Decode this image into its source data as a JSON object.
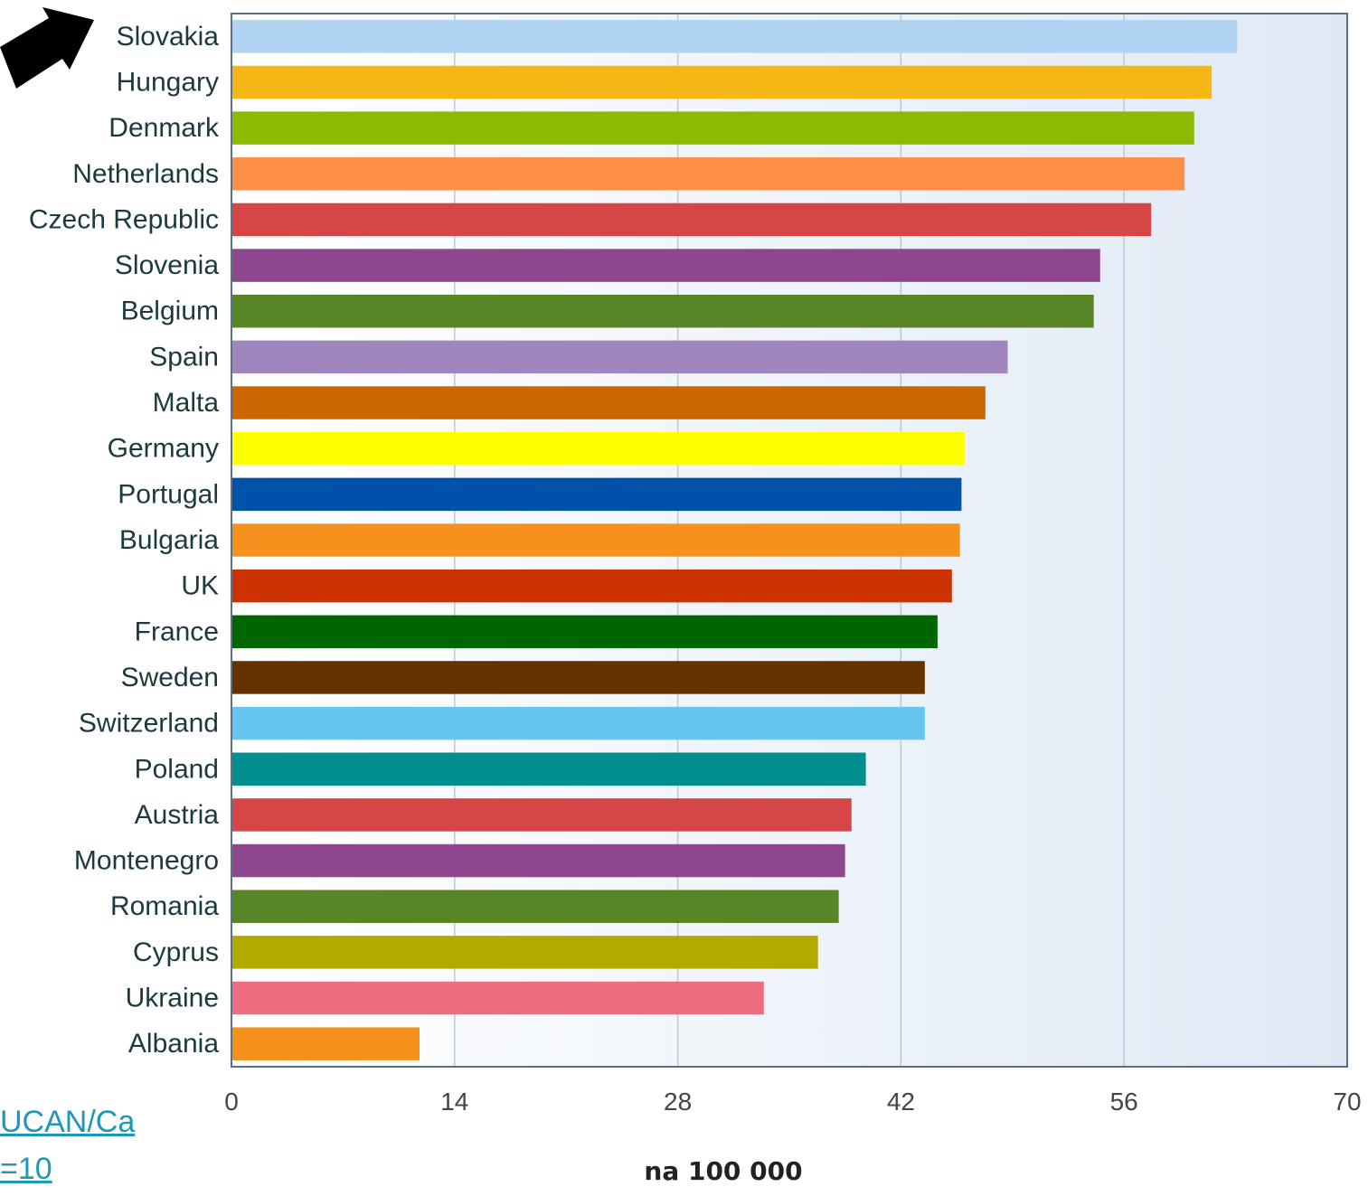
{
  "chart_data": {
    "type": "bar",
    "orientation": "horizontal",
    "xlabel": "na 100 000",
    "xlim": [
      0,
      70
    ],
    "xticks": [
      "0",
      "14",
      "28",
      "42",
      "56",
      "70"
    ],
    "grid": true,
    "categories": [
      "Slovakia",
      "Hungary",
      "Denmark",
      "Netherlands",
      "Czech Republic",
      "Slovenia",
      "Belgium",
      "Spain",
      "Malta",
      "Germany",
      "Portugal",
      "Bulgaria",
      "UK",
      "France",
      "Sweden",
      "Switzerland",
      "Poland",
      "Austria",
      "Montenegro",
      "Romania",
      "Cyprus",
      "Ukraine",
      "Albania"
    ],
    "values": [
      63.1,
      61.5,
      60.4,
      59.8,
      57.7,
      54.5,
      54.1,
      48.7,
      47.3,
      46.0,
      45.8,
      45.7,
      45.2,
      44.3,
      43.5,
      43.5,
      39.8,
      38.9,
      38.5,
      38.1,
      36.8,
      33.4,
      11.8
    ],
    "colors": [
      "#b0d4f1",
      "#f5b716",
      "#8bba00",
      "#ff8e46",
      "#d64646",
      "#8e468e",
      "#588526",
      "#a186be",
      "#cc6600",
      "#ffff00",
      "#0051a8",
      "#f6911e",
      "#cc3300",
      "#006600",
      "#663300",
      "#65c7f0",
      "#008e8e",
      "#d64646",
      "#8e468e",
      "#588526",
      "#b3aa00",
      "#ef6d80",
      "#f6911e"
    ],
    "highlight_arrow_target": "Slovakia"
  },
  "link": {
    "line1": "UCAN/Ca",
    "line2": "=10"
  },
  "colors": {
    "category_label": "#1a3a40",
    "tick_label": "#444444",
    "axis_label": "#222222",
    "arrow": "#000000",
    "link": "#1f97b8"
  }
}
